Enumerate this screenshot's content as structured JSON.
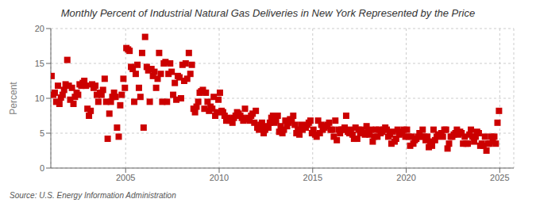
{
  "chart_data": {
    "type": "scatter",
    "title": "Monthly Percent of Industrial Natural Gas Deliveries in New York Represented by the Price",
    "ylabel": "Percent",
    "annotations": [
      "Source: U.S. Energy Information Administration"
    ],
    "color": "#cc0000",
    "marker": "square",
    "grid": true,
    "xlim": [
      2001.0,
      2025.75
    ],
    "xticks": [
      2005,
      2010,
      2015,
      2020,
      2025
    ],
    "ylim": [
      0,
      20
    ],
    "yticks": [
      0,
      5,
      10,
      15,
      20
    ],
    "x": [
      2001.04,
      2001.13,
      2001.21,
      2001.29,
      2001.38,
      2001.46,
      2001.54,
      2001.63,
      2001.71,
      2001.79,
      2001.88,
      2001.96,
      2002.04,
      2002.13,
      2002.21,
      2002.29,
      2002.38,
      2002.46,
      2002.54,
      2002.63,
      2002.71,
      2002.79,
      2002.88,
      2002.96,
      2003.04,
      2003.13,
      2003.21,
      2003.29,
      2003.38,
      2003.46,
      2003.54,
      2003.63,
      2003.71,
      2003.79,
      2003.88,
      2003.96,
      2004.04,
      2004.13,
      2004.21,
      2004.29,
      2004.38,
      2004.46,
      2004.54,
      2004.63,
      2004.71,
      2004.79,
      2004.88,
      2004.96,
      2005.04,
      2005.13,
      2005.21,
      2005.29,
      2005.38,
      2005.46,
      2005.54,
      2005.63,
      2005.71,
      2005.79,
      2005.88,
      2005.96,
      2006.04,
      2006.13,
      2006.21,
      2006.29,
      2006.38,
      2006.46,
      2006.54,
      2006.63,
      2006.71,
      2006.79,
      2006.88,
      2006.96,
      2007.04,
      2007.13,
      2007.21,
      2007.29,
      2007.38,
      2007.46,
      2007.54,
      2007.63,
      2007.71,
      2007.79,
      2007.88,
      2007.96,
      2008.04,
      2008.13,
      2008.21,
      2008.29,
      2008.38,
      2008.46,
      2008.54,
      2008.63,
      2008.71,
      2008.79,
      2008.88,
      2008.96,
      2009.04,
      2009.13,
      2009.21,
      2009.29,
      2009.38,
      2009.46,
      2009.54,
      2009.63,
      2009.71,
      2009.79,
      2009.88,
      2009.96,
      2010.04,
      2010.13,
      2010.21,
      2010.29,
      2010.38,
      2010.46,
      2010.54,
      2010.63,
      2010.71,
      2010.79,
      2010.88,
      2010.96,
      2011.04,
      2011.13,
      2011.21,
      2011.29,
      2011.38,
      2011.46,
      2011.54,
      2011.63,
      2011.71,
      2011.79,
      2011.88,
      2011.96,
      2012.04,
      2012.13,
      2012.21,
      2012.29,
      2012.38,
      2012.46,
      2012.54,
      2012.63,
      2012.71,
      2012.79,
      2012.88,
      2012.96,
      2013.04,
      2013.13,
      2013.21,
      2013.29,
      2013.38,
      2013.46,
      2013.54,
      2013.63,
      2013.71,
      2013.79,
      2013.88,
      2013.96,
      2014.04,
      2014.13,
      2014.21,
      2014.29,
      2014.38,
      2014.46,
      2014.54,
      2014.63,
      2014.71,
      2014.79,
      2014.88,
      2014.96,
      2015.04,
      2015.13,
      2015.21,
      2015.29,
      2015.38,
      2015.46,
      2015.54,
      2015.63,
      2015.71,
      2015.79,
      2015.88,
      2015.96,
      2016.04,
      2016.13,
      2016.21,
      2016.29,
      2016.38,
      2016.46,
      2016.54,
      2016.63,
      2016.71,
      2016.79,
      2016.88,
      2016.96,
      2017.04,
      2017.13,
      2017.21,
      2017.29,
      2017.38,
      2017.46,
      2017.54,
      2017.63,
      2017.71,
      2017.79,
      2017.88,
      2017.96,
      2018.04,
      2018.13,
      2018.21,
      2018.29,
      2018.38,
      2018.46,
      2018.54,
      2018.63,
      2018.71,
      2018.79,
      2018.88,
      2018.96,
      2019.04,
      2019.13,
      2019.21,
      2019.29,
      2019.38,
      2019.46,
      2019.54,
      2019.63,
      2019.71,
      2019.79,
      2019.88,
      2019.96,
      2020.04,
      2020.13,
      2020.21,
      2020.29,
      2020.38,
      2020.46,
      2020.54,
      2020.63,
      2020.71,
      2020.79,
      2020.88,
      2020.96,
      2021.04,
      2021.13,
      2021.21,
      2021.29,
      2021.38,
      2021.46,
      2021.54,
      2021.63,
      2021.71,
      2021.79,
      2021.88,
      2021.96,
      2022.04,
      2022.13,
      2022.21,
      2022.29,
      2022.38,
      2022.46,
      2022.54,
      2022.63,
      2022.71,
      2022.79,
      2022.88,
      2022.96,
      2023.04,
      2023.13,
      2023.21,
      2023.29,
      2023.38,
      2023.46,
      2023.54,
      2023.63,
      2023.71,
      2023.79,
      2023.88,
      2023.96,
      2024.04,
      2024.13,
      2024.21,
      2024.29,
      2024.38,
      2024.46,
      2024.54,
      2024.63,
      2024.71,
      2024.79,
      2024.88,
      2024.96
    ],
    "values": [
      13.2,
      10.5,
      10.8,
      9.5,
      11.8,
      9.2,
      10.1,
      10.5,
      11.2,
      12.0,
      15.5,
      11.8,
      9.8,
      11.5,
      9.2,
      10.2,
      10.8,
      10.5,
      12.0,
      11.8,
      12.2,
      12.5,
      11.8,
      8.5,
      7.5,
      8.2,
      12.0,
      11.5,
      11.8,
      10.5,
      9.5,
      10.8,
      10.5,
      11.2,
      12.8,
      9.5,
      4.2,
      7.8,
      9.5,
      10.2,
      10.8,
      10.2,
      5.8,
      4.5,
      9.0,
      10.5,
      12.8,
      11.5,
      17.2,
      17.0,
      16.8,
      14.5,
      14.2,
      9.5,
      13.5,
      14.8,
      11.5,
      10.2,
      16.5,
      5.8,
      18.8,
      14.5,
      14.0,
      9.5,
      14.2,
      13.2,
      13.8,
      11.5,
      12.8,
      16.5,
      13.5,
      9.5,
      15.0,
      15.2,
      9.5,
      13.5,
      15.0,
      13.8,
      10.5,
      12.2,
      9.8,
      13.2,
      13.0,
      10.0,
      14.8,
      12.5,
      15.0,
      12.8,
      16.5,
      13.5,
      14.8,
      8.5,
      8.0,
      8.8,
      9.5,
      10.8,
      11.0,
      11.2,
      8.5,
      10.8,
      9.5,
      8.2,
      8.8,
      8.5,
      10.2,
      7.5,
      8.0,
      9.8,
      10.8,
      8.2,
      8.0,
      7.5,
      6.8,
      7.2,
      6.8,
      7.0,
      6.5,
      7.2,
      7.5,
      8.0,
      7.8,
      7.5,
      7.2,
      6.8,
      8.5,
      7.0,
      7.2,
      6.8,
      7.5,
      7.8,
      6.5,
      8.2,
      5.8,
      5.5,
      6.2,
      6.5,
      5.0,
      5.5,
      6.0,
      5.8,
      6.5,
      7.2,
      7.5,
      6.5,
      6.8,
      7.5,
      5.2,
      6.0,
      5.0,
      5.5,
      6.8,
      6.0,
      6.5,
      7.0,
      6.8,
      7.5,
      6.2,
      5.0,
      5.5,
      4.8,
      6.2,
      5.5,
      6.0,
      5.8,
      6.2,
      6.5,
      6.8,
      5.0,
      5.5,
      4.8,
      4.5,
      6.8,
      5.0,
      6.2,
      5.5,
      5.8,
      6.0,
      6.2,
      6.5,
      5.5,
      5.5,
      4.5,
      6.8,
      4.0,
      5.5,
      5.0,
      5.5,
      5.5,
      5.8,
      7.5,
      5.2,
      5.0,
      5.5,
      4.8,
      4.2,
      5.8,
      4.2,
      5.5,
      5.0,
      5.5,
      5.0,
      4.8,
      6.0,
      5.2,
      4.8,
      5.5,
      3.8,
      4.5,
      5.5,
      4.5,
      5.5,
      5.0,
      5.2,
      5.5,
      5.8,
      5.5,
      4.5,
      4.8,
      3.5,
      5.2,
      3.8,
      4.2,
      5.5,
      4.8,
      5.0,
      5.2,
      5.5,
      4.5,
      5.5,
      4.5,
      3.2,
      4.5,
      3.5,
      4.0,
      4.2,
      4.5,
      5.0,
      4.5,
      5.5,
      4.5,
      4.0,
      4.5,
      3.0,
      3.8,
      3.2,
      5.5,
      4.0,
      4.5,
      4.8,
      4.8,
      5.0,
      4.5,
      5.5,
      5.5,
      2.8,
      3.5,
      4.5,
      4.5,
      4.8,
      5.0,
      5.5,
      4.8,
      5.2,
      5.0,
      3.5,
      4.5,
      3.5,
      3.5,
      4.8,
      5.5,
      4.5,
      3.8,
      4.5,
      5.2,
      5.0,
      3.2,
      3.5,
      3.2,
      4.5,
      2.5,
      3.5,
      3.5,
      4.5,
      3.8,
      4.5,
      3.5,
      6.5,
      8.2
    ]
  }
}
